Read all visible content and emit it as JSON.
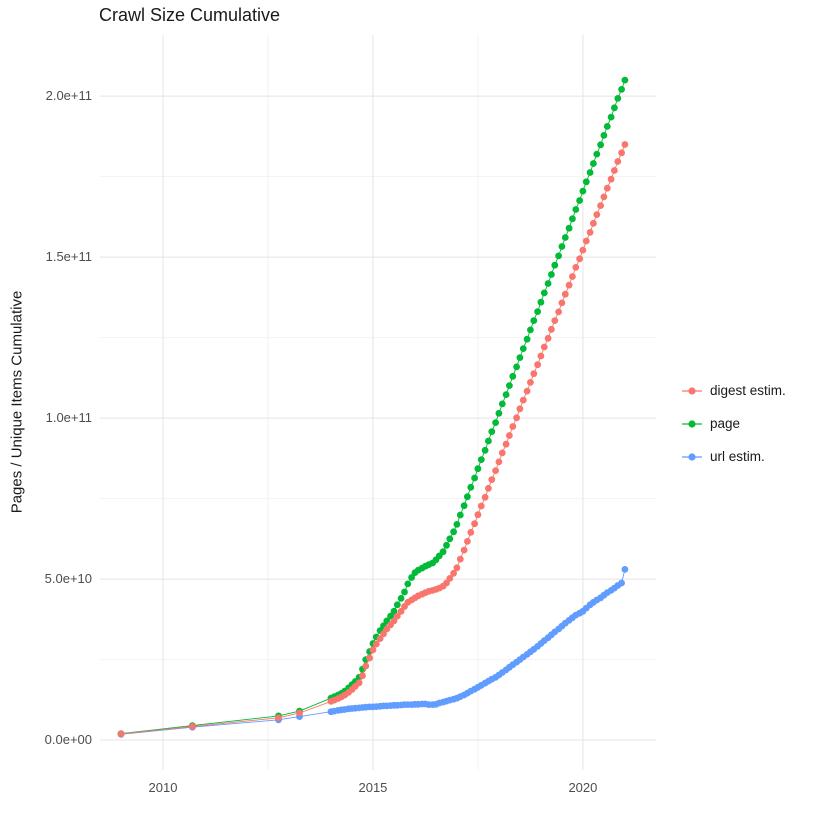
{
  "chart_data": {
    "type": "line",
    "title": "Crawl Size Cumulative",
    "xlabel": "",
    "ylabel": "Pages / Unique Items Cumulative",
    "legend_position": "right",
    "grid": true,
    "y_value_unit": 1000000000.0,
    "xlim": [
      2008.5,
      2021.74
    ],
    "ylim": [
      -9.3,
      219
    ],
    "x_ticks": [
      {
        "value": 2010,
        "label": "2010"
      },
      {
        "value": 2015,
        "label": "2015"
      },
      {
        "value": 2020,
        "label": "2020"
      }
    ],
    "y_ticks": [
      {
        "value": 0,
        "label": "0.0e+00"
      },
      {
        "value": 50,
        "label": "5.0e+10"
      },
      {
        "value": 100,
        "label": "1.0e+11"
      },
      {
        "value": 150,
        "label": "1.5e+11"
      },
      {
        "value": 200,
        "label": "2.0e+11"
      }
    ],
    "x_minor": [
      2012.5,
      2017.5
    ],
    "y_minor": [
      25,
      75,
      125,
      175
    ],
    "x": [
      2009,
      2010.7,
      2012.75,
      2013.25,
      2014,
      2014.08,
      2014.17,
      2014.25,
      2014.33,
      2014.42,
      2014.5,
      2014.58,
      2014.67,
      2014.75,
      2014.83,
      2014.92,
      2015,
      2015.08,
      2015.17,
      2015.25,
      2015.33,
      2015.42,
      2015.5,
      2015.58,
      2015.67,
      2015.75,
      2015.83,
      2015.92,
      2016,
      2016.08,
      2016.17,
      2016.25,
      2016.33,
      2016.42,
      2016.5,
      2016.58,
      2016.67,
      2016.75,
      2016.83,
      2016.92,
      2017,
      2017.08,
      2017.17,
      2017.25,
      2017.33,
      2017.42,
      2017.5,
      2017.58,
      2017.67,
      2017.75,
      2017.83,
      2017.92,
      2018,
      2018.08,
      2018.17,
      2018.25,
      2018.33,
      2018.42,
      2018.5,
      2018.58,
      2018.67,
      2018.75,
      2018.83,
      2018.92,
      2019,
      2019.08,
      2019.17,
      2019.25,
      2019.33,
      2019.42,
      2019.5,
      2019.58,
      2019.67,
      2019.75,
      2019.83,
      2019.92,
      2020,
      2020.08,
      2020.17,
      2020.25,
      2020.33,
      2020.42,
      2020.5,
      2020.58,
      2020.67,
      2020.75,
      2020.83,
      2020.92,
      2021
    ],
    "series": [
      {
        "name": "digest estim.",
        "color": "#F8766D",
        "y": [
          1.9,
          4.2,
          6.9,
          8.4,
          12,
          12.4,
          12.9,
          13.4,
          14,
          14.8,
          15.7,
          16.7,
          17.8,
          20,
          23,
          25.5,
          28,
          29.8,
          31.5,
          33,
          34.5,
          35.8,
          37,
          38.5,
          40,
          41.5,
          42.8,
          43.5,
          44.2,
          44.8,
          45.3,
          45.8,
          46.2,
          46.5,
          46.8,
          47.2,
          47.8,
          48.8,
          50.2,
          51.8,
          53.5,
          56.2,
          59,
          61.7,
          64.5,
          67.2,
          70,
          72.7,
          75.4,
          78.2,
          80.9,
          83.7,
          86.4,
          89.2,
          91.9,
          94.6,
          97.4,
          100.1,
          102.9,
          105.6,
          108.4,
          111.1,
          113.8,
          116.6,
          119.3,
          122.1,
          124.8,
          127.6,
          130.3,
          133,
          135.8,
          138.5,
          141.3,
          144,
          146.8,
          149.5,
          152.2,
          155,
          157.7,
          160.5,
          163.2,
          166,
          168.7,
          171.4,
          174.2,
          176.9,
          179.7,
          182.4,
          185
        ]
      },
      {
        "name": "page",
        "color": "#00BA38",
        "y": [
          2,
          4.5,
          7.5,
          9,
          13,
          13.5,
          14,
          14.5,
          15.2,
          16.2,
          17.2,
          18.2,
          19.5,
          22,
          25,
          27.5,
          30,
          32,
          34,
          35.5,
          37,
          38.5,
          40,
          42,
          44,
          46,
          48.5,
          50.5,
          52,
          52.8,
          53.4,
          54,
          54.5,
          55,
          56,
          57.2,
          58.5,
          60.5,
          62.5,
          64.7,
          67,
          69.9,
          72.8,
          75.6,
          78.5,
          81.4,
          84.3,
          87.1,
          90,
          92.9,
          95.8,
          98.6,
          101.5,
          104.4,
          107.3,
          110.1,
          113,
          115.9,
          118.8,
          121.6,
          124.5,
          127.4,
          130.3,
          133.1,
          136,
          138.9,
          141.8,
          144.6,
          147.5,
          150.4,
          153.3,
          156.1,
          159,
          161.9,
          164.8,
          167.6,
          170.5,
          173.4,
          176.3,
          179.1,
          182,
          184.9,
          187.8,
          190.6,
          193.5,
          196.4,
          199.3,
          202.1,
          205
        ]
      },
      {
        "name": "url estim.",
        "color": "#619CFF",
        "y": [
          1.8,
          4,
          6.3,
          7.3,
          8.8,
          9,
          9.2,
          9.4,
          9.5,
          9.7,
          9.8,
          9.9,
          10,
          10.1,
          10.2,
          10.3,
          10.3,
          10.4,
          10.5,
          10.6,
          10.6,
          10.7,
          10.8,
          10.8,
          10.9,
          11,
          11,
          11,
          11.1,
          11.1,
          11.2,
          11.2,
          11,
          11,
          11.1,
          11.5,
          11.8,
          12.1,
          12.4,
          12.7,
          13,
          13.5,
          14,
          14.6,
          15.2,
          15.8,
          16.4,
          17,
          17.7,
          18.3,
          18.9,
          19.5,
          20.2,
          21,
          21.8,
          22.6,
          23.4,
          24.2,
          25,
          25.8,
          26.6,
          27.4,
          28.2,
          29.1,
          30,
          30.9,
          31.8,
          32.7,
          33.6,
          34.5,
          35.4,
          36.3,
          37.2,
          38,
          38.8,
          39.4,
          40,
          41,
          42,
          42.8,
          43.5,
          44.2,
          45,
          45.8,
          46.5,
          47.2,
          48,
          48.8,
          53
        ]
      }
    ],
    "colors": {
      "grid_major": "#e4e4e4",
      "grid_minor": "#f2f2f2",
      "tick_text": "#4d4d4d",
      "title_text": "#1a1a1a"
    }
  }
}
